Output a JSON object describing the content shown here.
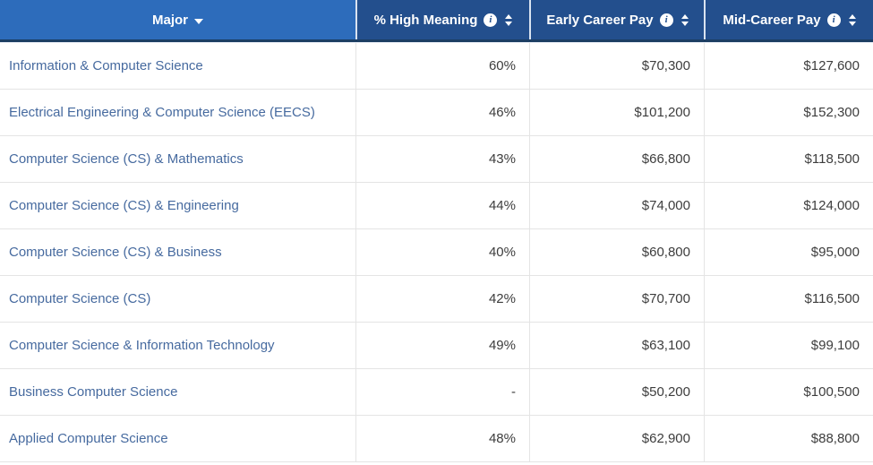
{
  "table": {
    "columns": [
      {
        "label": "Major",
        "sortable": true,
        "sort_state": "sorted",
        "icon": "caret-down-icon"
      },
      {
        "label": "% High Meaning",
        "sortable": true,
        "has_info": true,
        "icon": "sort-updown-icon"
      },
      {
        "label": "Early Career Pay",
        "sortable": true,
        "has_info": true,
        "icon": "sort-updown-icon"
      },
      {
        "label": "Mid-Career Pay",
        "sortable": true,
        "has_info": true,
        "icon": "sort-updown-icon"
      }
    ],
    "rows": [
      {
        "major": "Information & Computer Science",
        "high_meaning": "60%",
        "early_pay": "$70,300",
        "mid_pay": "$127,600"
      },
      {
        "major": "Electrical Engineering & Computer Science (EECS)",
        "high_meaning": "46%",
        "early_pay": "$101,200",
        "mid_pay": "$152,300"
      },
      {
        "major": "Computer Science (CS) & Mathematics",
        "high_meaning": "43%",
        "early_pay": "$66,800",
        "mid_pay": "$118,500"
      },
      {
        "major": "Computer Science (CS) & Engineering",
        "high_meaning": "44%",
        "early_pay": "$74,000",
        "mid_pay": "$124,000"
      },
      {
        "major": "Computer Science (CS) & Business",
        "high_meaning": "40%",
        "early_pay": "$60,800",
        "mid_pay": "$95,000"
      },
      {
        "major": "Computer Science (CS)",
        "high_meaning": "42%",
        "early_pay": "$70,700",
        "mid_pay": "$116,500"
      },
      {
        "major": "Computer Science & Information Technology",
        "high_meaning": "49%",
        "early_pay": "$63,100",
        "mid_pay": "$99,100"
      },
      {
        "major": "Business Computer Science",
        "high_meaning": "-",
        "early_pay": "$50,200",
        "mid_pay": "$100,500"
      },
      {
        "major": "Applied Computer Science",
        "high_meaning": "48%",
        "early_pay": "$62,900",
        "mid_pay": "$88,800"
      }
    ],
    "icons": {
      "info_glyph": "i"
    },
    "colors": {
      "major_header_bg": "#2d6cbb",
      "data_header_bg": "#234f8d",
      "header_bottom_border": "#1c3e63",
      "header_text": "#ffffff",
      "link_text": "#466a9f",
      "value_text": "#3d3d3d",
      "grid_line": "#e4e4e4"
    }
  }
}
